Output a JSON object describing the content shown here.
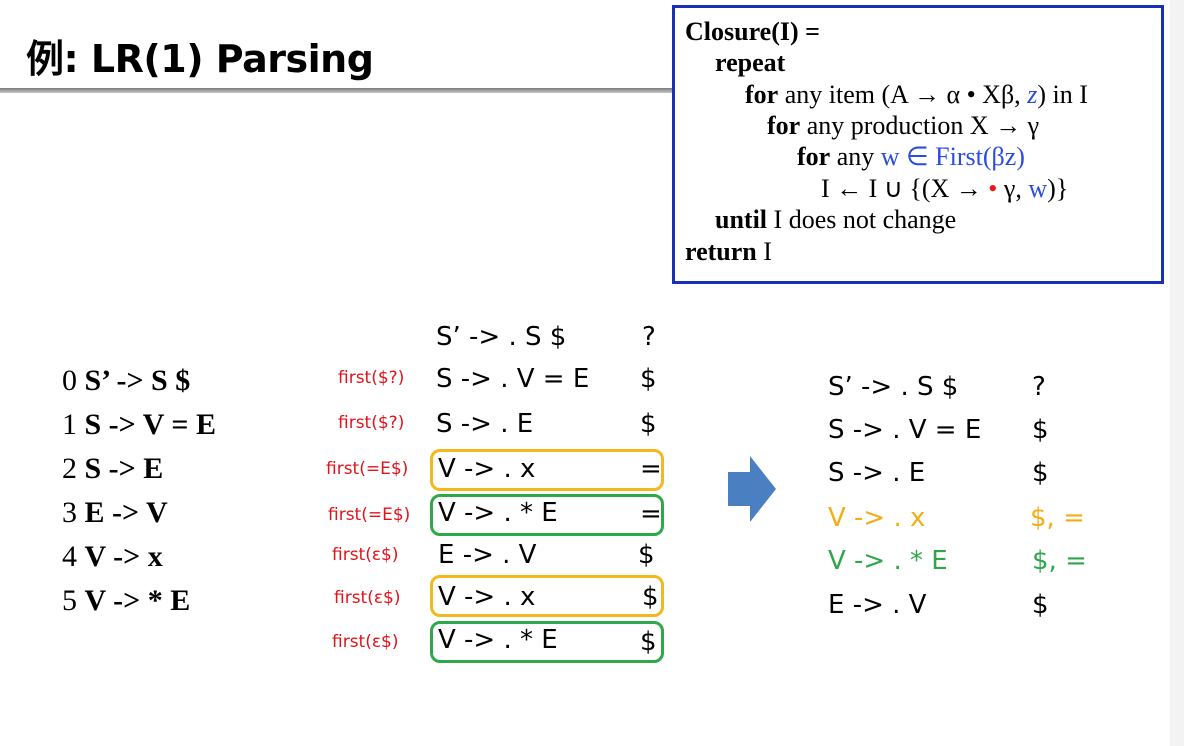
{
  "title": "例: LR(1) Parsing",
  "closure": {
    "line1": "Closure(I) =",
    "repeat": "repeat",
    "for1_kw": "for",
    "for1_rest": " any item (A → α • Xβ, ",
    "for1_z": "z",
    "for1_end": ") in I",
    "for2_kw": "for",
    "for2_rest": " any production X → γ",
    "for3_kw": "for",
    "for3_any": " any ",
    "for3_blue": "w ∈ First(βz)",
    "assign_pre": "I ← I ∪ {(X → ",
    "assign_dot": "•",
    "assign_mid": " γ, ",
    "assign_w": "w",
    "assign_end": ")}",
    "until_kw": "until",
    "until_rest": " I does not change",
    "return_kw": "return",
    "return_rest": " I"
  },
  "grammar": [
    {
      "num": "0",
      "prod": "S’ -> S $"
    },
    {
      "num": "1",
      "prod": "S -> V = E"
    },
    {
      "num": "2",
      "prod": "S -> E"
    },
    {
      "num": "3",
      "prod": "E -> V"
    },
    {
      "num": "4",
      "prod": "V -> x"
    },
    {
      "num": "5",
      "prod": "V -> * E"
    }
  ],
  "derivation": [
    {
      "first": "",
      "item": "S’ -> . S $",
      "la": "?"
    },
    {
      "first": "first($?)",
      "item": "S -> . V = E",
      "la": "$"
    },
    {
      "first": "first($?)",
      "item": "S -> . E",
      "la": "$"
    },
    {
      "first": "first(=E$)",
      "item": "V -> . x",
      "la": "="
    },
    {
      "first": "first(=E$)",
      "item": "V -> . * E",
      "la": "="
    },
    {
      "first": "first(ε$)",
      "item": "E -> . V",
      "la": "$"
    },
    {
      "first": "first(ε$)",
      "item": "V -> . x",
      "la": "$"
    },
    {
      "first": "first(ε$)",
      "item": "V -> . * E",
      "la": "$"
    }
  ],
  "result": [
    {
      "item": "S’ -> . S $",
      "la": "?"
    },
    {
      "item": "S -> . V = E",
      "la": "$"
    },
    {
      "item": "S -> . E",
      "la": "$"
    },
    {
      "item": "V -> . x",
      "la": "$, ="
    },
    {
      "item": "V -> . * E",
      "la": "$, ="
    },
    {
      "item": "E -> . V",
      "la": "$"
    }
  ],
  "colors": {
    "box_border": "#1a2fb8",
    "first_label": "#e0141a",
    "highlight_yellow": "#f5b81c",
    "highlight_green": "#2ea84a",
    "arrow": "#4a7fc1"
  },
  "icons": {
    "arrow": "right-arrow-icon"
  }
}
